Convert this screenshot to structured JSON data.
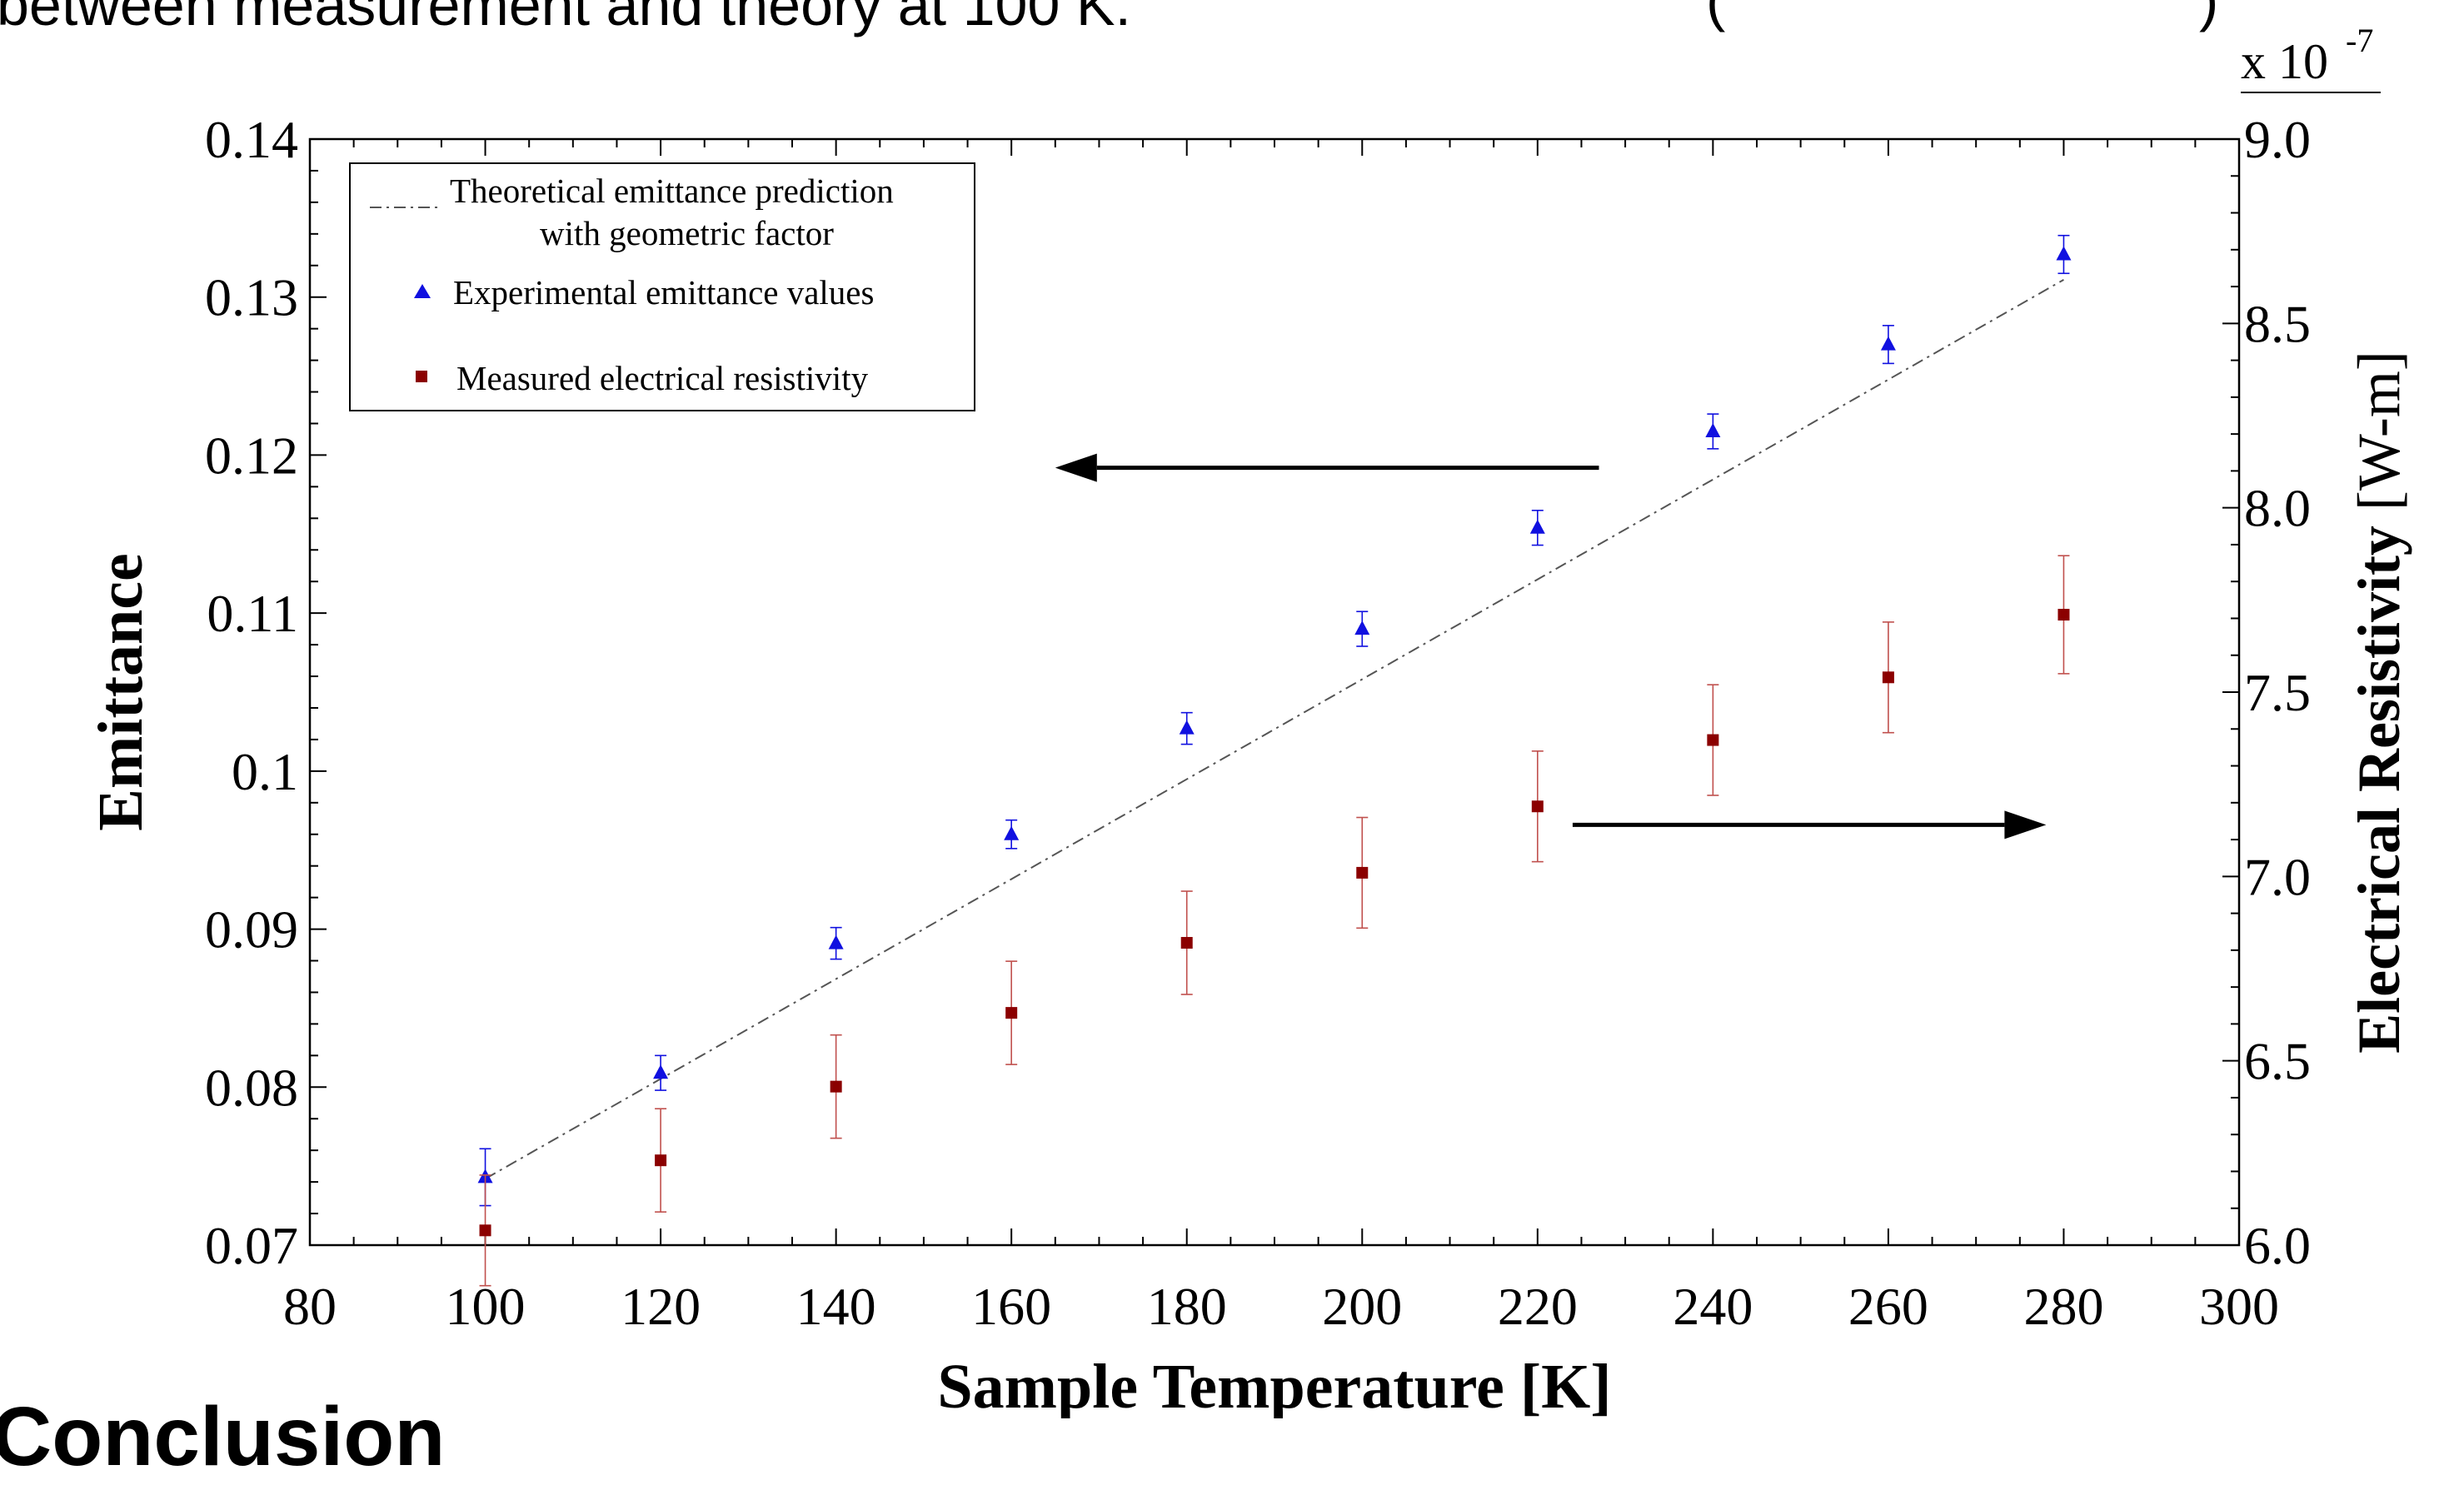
{
  "page": {
    "caption_fragment": "between measurement and theory at 100 K.",
    "paren_left": "(",
    "paren_right": ")",
    "heading_fragment": "Conclusion"
  },
  "chart_data": {
    "type": "scatter",
    "xlabel": "Sample Temperature [K]",
    "ylabel": "Emittance",
    "y2label_bold": "Electrical Resistivity",
    "y2label_unit": "[W-m]",
    "y2_multiplier": "x 10",
    "y2_multiplier_exp": "-7",
    "xlim": [
      80,
      300
    ],
    "ylim": [
      0.07,
      0.14
    ],
    "y2lim": [
      6.0,
      9.0
    ],
    "x_ticks": [
      80,
      100,
      120,
      140,
      160,
      180,
      200,
      220,
      240,
      260,
      280,
      300
    ],
    "x_tick_labels": [
      "80",
      "100",
      "120",
      "140",
      "160",
      "180",
      "200",
      "220",
      "240",
      "260",
      "280",
      "300"
    ],
    "y_ticks": [
      0.07,
      0.08,
      0.09,
      0.1,
      0.11,
      0.12,
      0.13,
      0.14
    ],
    "y_tick_labels": [
      "0.07",
      "0.08",
      "0.09",
      "0.1",
      "0.11",
      "0.12",
      "0.13",
      "0.14"
    ],
    "y2_ticks": [
      6.0,
      6.5,
      7.0,
      7.5,
      8.0,
      8.5,
      9.0
    ],
    "y2_tick_labels": [
      "6.0",
      "6.5",
      "7.0",
      "7.5",
      "8.0",
      "8.5",
      "9.0"
    ],
    "grid": false,
    "legend_position": "top-left",
    "legend_line1": "Theoretical emittance prediction",
    "legend_line2": "with geometric factor",
    "series": [
      {
        "name": "Theoretical emittance prediction with geometric factor",
        "axis": "left",
        "kind": "line",
        "color": "#555555",
        "x": [
          100,
          280
        ],
        "y": [
          0.0742,
          0.1311
        ]
      },
      {
        "name": "Experimental emittance values",
        "axis": "left",
        "kind": "triangle",
        "color": "#1010e0",
        "x": [
          100,
          120,
          140,
          160,
          180,
          200,
          220,
          240,
          260,
          280
        ],
        "y": [
          0.0743,
          0.0809,
          0.0891,
          0.096,
          0.1027,
          0.109,
          0.1154,
          0.1215,
          0.127,
          0.1327
        ],
        "err": [
          0.0018,
          0.0011,
          0.001,
          0.0009,
          0.001,
          0.0011,
          0.0011,
          0.0011,
          0.0012,
          0.0012
        ]
      },
      {
        "name": "Measured electrical resistivity",
        "axis": "right",
        "kind": "square",
        "color": "#8b0000",
        "errcolor": "#c0504d",
        "x": [
          100,
          120,
          140,
          160,
          180,
          200,
          220,
          240,
          260,
          280
        ],
        "y": [
          6.04,
          6.23,
          6.43,
          6.63,
          6.82,
          7.01,
          7.19,
          7.37,
          7.54,
          7.71
        ],
        "err": [
          0.15,
          0.14,
          0.14,
          0.14,
          0.14,
          0.15,
          0.15,
          0.15,
          0.15,
          0.16
        ]
      }
    ],
    "annotations": [
      {
        "type": "arrow",
        "direction": "left",
        "points_to": "left axis",
        "y": 0.1192,
        "x_from": 227,
        "x_to": 165
      },
      {
        "type": "arrow",
        "direction": "right",
        "points_to": "right axis",
        "y2": 7.14,
        "x_from": 224,
        "x_to": 278
      }
    ]
  }
}
